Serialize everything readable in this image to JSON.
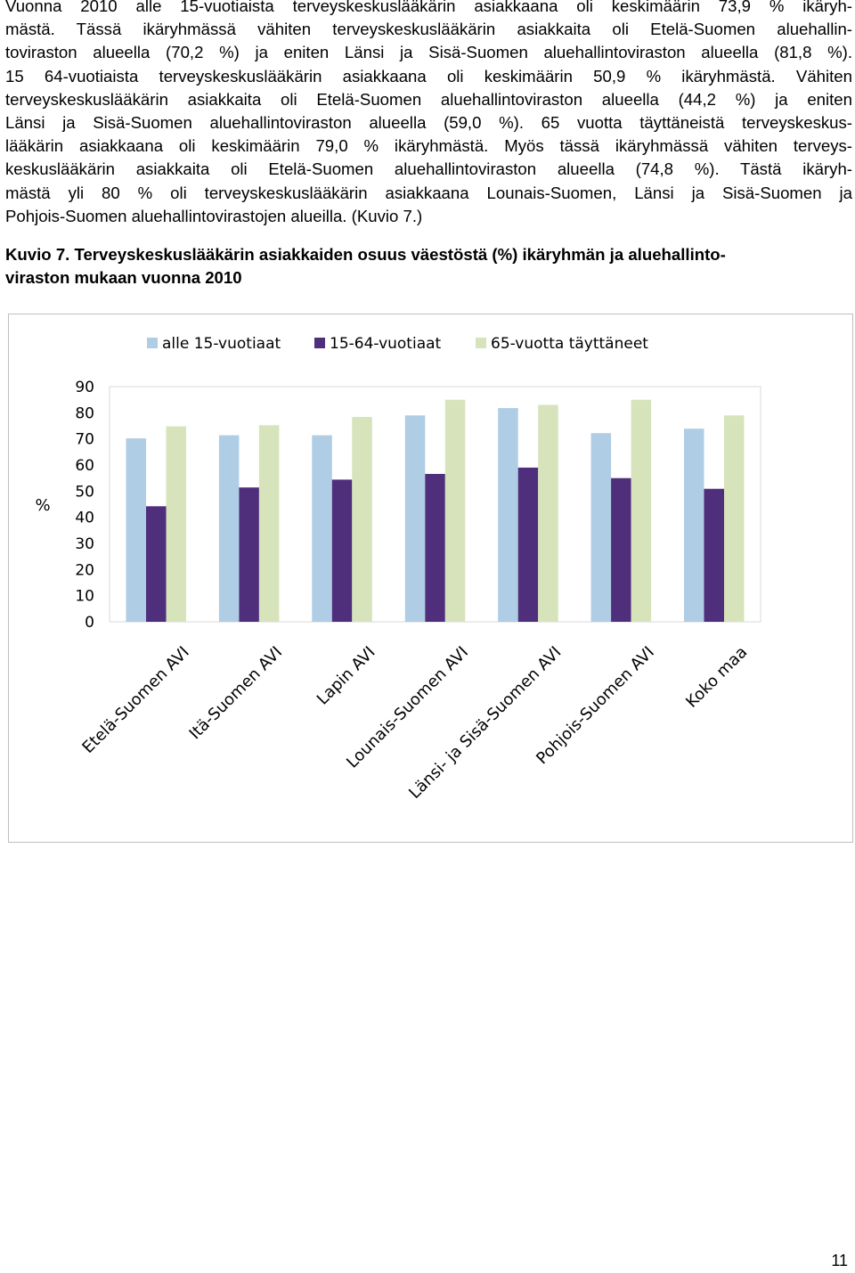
{
  "document": {
    "paragraph_lines": [
      "Vuonna 2010 alle 15-vuotiaista terveyskeskuslääkärin asiakkaana oli keskimäärin 73,9 % ikäryh-",
      "mästä. Tässä ikäryhmässä vähiten terveyskeskuslääkärin asiakkaita oli Etelä-Suomen aluehallin-",
      "toviraston alueella (70,2 %) ja eniten Länsi ja Sisä-Suomen aluehallintoviraston alueella (81,8 %).",
      "15 64-vuotiaista terveyskeskuslääkärin asiakkaana oli keskimäärin 50,9 % ikäryhmästä. Vähiten",
      "terveyskeskuslääkärin asiakkaita oli Etelä-Suomen aluehallintoviraston alueella (44,2 %) ja eniten",
      "Länsi ja Sisä-Suomen aluehallintoviraston alueella (59,0 %). 65 vuotta täyttäneistä terveyskeskus-",
      "lääkärin asiakkaana oli keskimäärin 79,0 % ikäryhmästä. Myös tässä ikäryhmässä vähiten terveys-",
      "keskuslääkärin asiakkaita oli Etelä-Suomen aluehallintoviraston alueella (74,8 %). Tästä ikäryh-",
      "mästä yli 80 % oli terveyskeskuslääkärin asiakkaana Lounais-Suomen, Länsi ja Sisä-Suomen ja",
      "Pohjois-Suomen aluehallintovirastojen alueilla. (Kuvio 7.)"
    ],
    "caption_lines": [
      "Kuvio 7. Terveyskeskuslääkärin asiakkaiden osuus väestöstä (%) ikäryhmän ja aluehallinto-",
      "viraston mukaan vuonna 2010"
    ],
    "page_number": "11"
  },
  "chart_data": {
    "type": "bar",
    "title": "",
    "xlabel": "",
    "ylabel": "%",
    "ylim": [
      0,
      90
    ],
    "yticks": [
      0,
      10,
      20,
      30,
      40,
      50,
      60,
      70,
      80,
      90
    ],
    "grid": false,
    "legend_position": "top",
    "categories": [
      "Etelä-Suomen AVI",
      "Itä-Suomen AVI",
      "Lapin AVI",
      "Lounais-Suomen AVI",
      "Länsi- ja Sisä-Suomen AVI",
      "Pohjois-Suomen AVI",
      "Koko maa"
    ],
    "series": [
      {
        "name": "alle 15-vuotiaat",
        "color": "#afcde5",
        "values": [
          70.2,
          71.4,
          71.4,
          79.0,
          81.8,
          72.2,
          73.9
        ]
      },
      {
        "name": "15-64-vuotiaat",
        "color": "#4f2e7c",
        "values": [
          44.2,
          51.4,
          54.4,
          56.6,
          59.0,
          55.0,
          50.9
        ]
      },
      {
        "name": "65-vuotta täyttäneet",
        "color": "#d7e3ba",
        "values": [
          74.8,
          75.2,
          78.4,
          85.0,
          83.0,
          85.0,
          79.0
        ]
      }
    ]
  }
}
